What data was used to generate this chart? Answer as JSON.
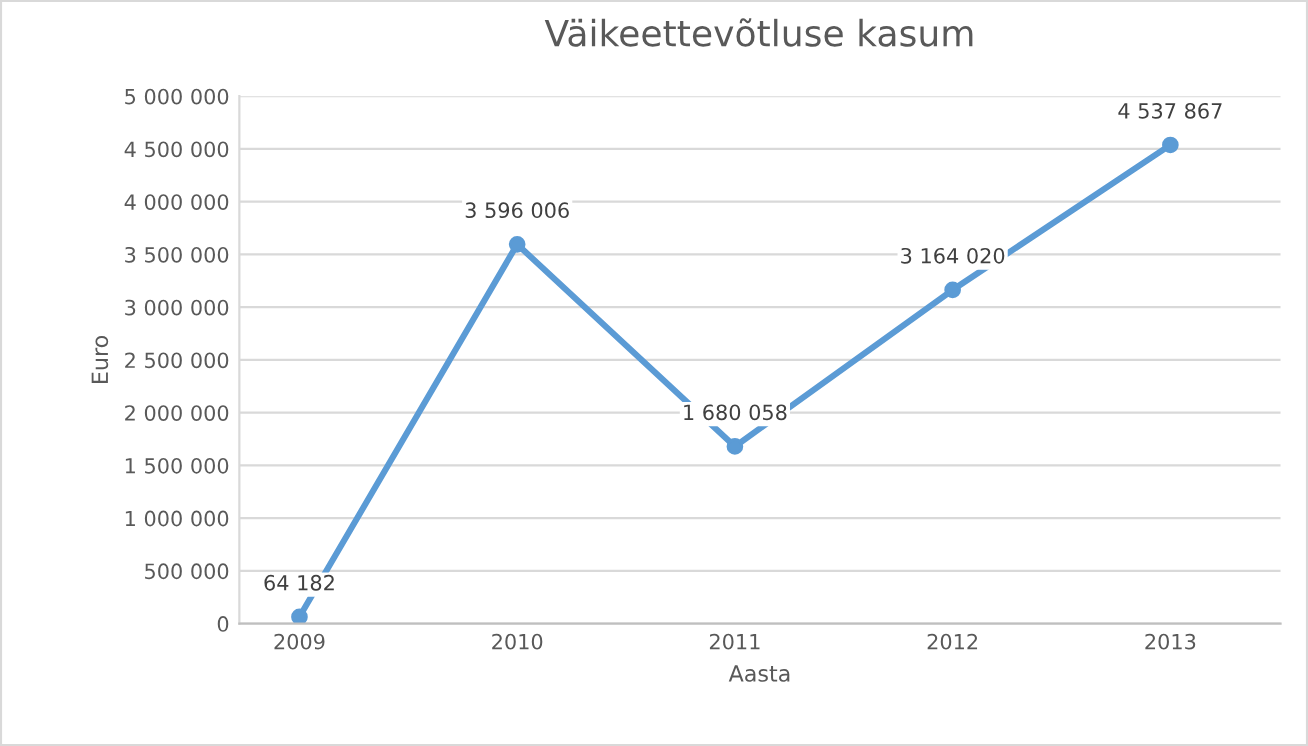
{
  "chart_data": {
    "type": "line",
    "title": "Väikeettevõtluse kasum",
    "xlabel": "Aasta",
    "ylabel": "Euro",
    "categories": [
      "2009",
      "2010",
      "2011",
      "2012",
      "2013"
    ],
    "series": [
      {
        "color": "#5b9bd5",
        "values": [
          64182,
          3596006,
          1680058,
          3164020,
          4537867
        ],
        "value_labels": [
          "64 182",
          "3 596 006",
          "1 680 058",
          "3 164 020",
          "4 537 867"
        ]
      }
    ],
    "ylim": [
      0,
      5000000
    ],
    "yticks": [
      {
        "value": 0,
        "label": "0"
      },
      {
        "value": 500000,
        "label": "500 000"
      },
      {
        "value": 1000000,
        "label": "1 000 000"
      },
      {
        "value": 1500000,
        "label": "1 500 000"
      },
      {
        "value": 2000000,
        "label": "2 000 000"
      },
      {
        "value": 2500000,
        "label": "2 500 000"
      },
      {
        "value": 3000000,
        "label": "3 000 000"
      },
      {
        "value": 3500000,
        "label": "3 500 000"
      },
      {
        "value": 4000000,
        "label": "4 000 000"
      },
      {
        "value": 4500000,
        "label": "4 500 000"
      },
      {
        "value": 5000000,
        "label": "5 000 000"
      }
    ],
    "grid": "y",
    "marker": "circle",
    "line_style": "solid"
  }
}
